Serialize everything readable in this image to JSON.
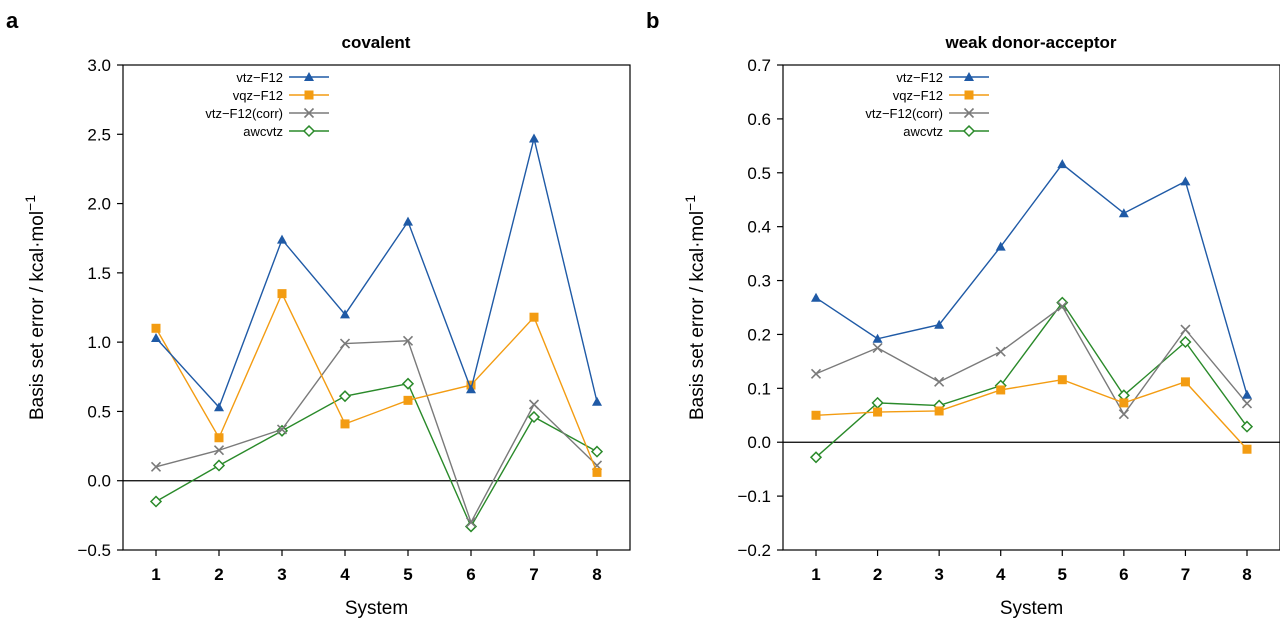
{
  "chart_data": [
    {
      "type": "line",
      "panel_label": "a",
      "title": "covalent",
      "xlabel": "System",
      "ylabel": "Basis set error / kcal·mol",
      "ylabel_superscript": "−1",
      "categories": [
        "1",
        "2",
        "3",
        "4",
        "5",
        "6",
        "7",
        "8"
      ],
      "ylim": [
        -0.5,
        3.0
      ],
      "yticks": [
        -0.5,
        0.0,
        0.5,
        1.0,
        1.5,
        2.0,
        2.5,
        3.0
      ],
      "ytick_labels": [
        "−0.5",
        "0.0",
        "0.5",
        "1.0",
        "1.5",
        "2.0",
        "2.5",
        "3.0"
      ],
      "zero_line": true,
      "grid": false,
      "legend_position": "top-left",
      "series": [
        {
          "name": "vtz−F12",
          "color": "#1f5aa6",
          "marker": "triangle",
          "values": [
            1.03,
            0.53,
            1.74,
            1.2,
            1.87,
            0.66,
            2.47,
            0.57
          ]
        },
        {
          "name": "vqz−F12",
          "color": "#f39c12",
          "marker": "square",
          "values": [
            1.1,
            0.31,
            1.35,
            0.41,
            0.58,
            0.69,
            1.18,
            0.06
          ]
        },
        {
          "name": "vtz−F12(corr)",
          "color": "#7a7a7a",
          "marker": "x",
          "values": [
            0.1,
            0.22,
            0.37,
            0.99,
            1.01,
            -0.3,
            0.55,
            0.11
          ]
        },
        {
          "name": "awcvtz",
          "color": "#2a8a2a",
          "marker": "diamond",
          "values": [
            -0.15,
            0.11,
            0.36,
            0.61,
            0.7,
            -0.33,
            0.46,
            0.21
          ]
        }
      ]
    },
    {
      "type": "line",
      "panel_label": "b",
      "title": "weak donor-acceptor",
      "xlabel": "System",
      "ylabel": "Basis set error / kcal·mol",
      "ylabel_superscript": "−1",
      "categories": [
        "1",
        "2",
        "3",
        "4",
        "5",
        "6",
        "7",
        "8"
      ],
      "ylim": [
        -0.2,
        0.7
      ],
      "yticks": [
        -0.2,
        -0.1,
        0.0,
        0.1,
        0.2,
        0.3,
        0.4,
        0.5,
        0.6,
        0.7
      ],
      "ytick_labels": [
        "−0.2",
        "−0.1",
        "0.0",
        "0.1",
        "0.2",
        "0.3",
        "0.4",
        "0.5",
        "0.6",
        "0.7"
      ],
      "zero_line": true,
      "grid": false,
      "legend_position": "top-left",
      "series": [
        {
          "name": "vtz−F12",
          "color": "#1f5aa6",
          "marker": "triangle",
          "values": [
            0.268,
            0.192,
            0.218,
            0.363,
            0.516,
            0.425,
            0.484,
            0.088
          ]
        },
        {
          "name": "vqz−F12",
          "color": "#f39c12",
          "marker": "square",
          "values": [
            0.05,
            0.056,
            0.058,
            0.097,
            0.116,
            0.073,
            0.112,
            -0.013
          ]
        },
        {
          "name": "vtz−F12(corr)",
          "color": "#7a7a7a",
          "marker": "x",
          "values": [
            0.127,
            0.175,
            0.112,
            0.168,
            0.252,
            0.052,
            0.209,
            0.072
          ]
        },
        {
          "name": "awcvtz",
          "color": "#2a8a2a",
          "marker": "diamond",
          "values": [
            -0.028,
            0.073,
            0.068,
            0.105,
            0.259,
            0.087,
            0.186,
            0.029
          ]
        }
      ]
    }
  ]
}
